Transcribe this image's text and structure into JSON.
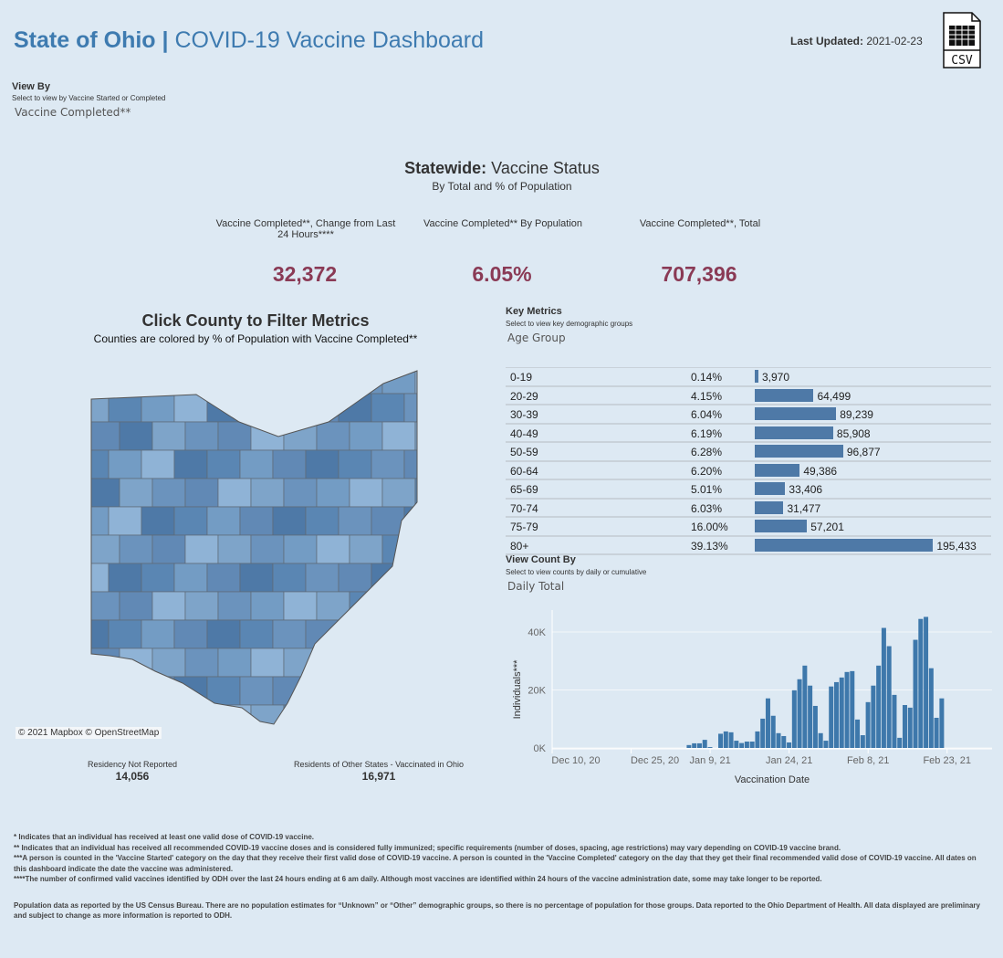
{
  "header": {
    "title_bold": "State of Ohio |",
    "title_rest": "COVID-19 Vaccine Dashboard",
    "last_updated_label": "Last Updated:",
    "last_updated_value": "2021-02-23",
    "csv_icon": "csv-file-icon",
    "csv_label": "CSV"
  },
  "view_by": {
    "title": "View By",
    "subtitle": "Select to view by Vaccine Started or Completed",
    "selected": "Vaccine Completed**"
  },
  "statewide": {
    "title_bold": "Statewide:",
    "title_rest": "Vaccine Status",
    "subtitle": "By Total and % of Population",
    "kpis": [
      {
        "label": "Vaccine Completed**, Change from Last 24 Hours****",
        "value": "32,372"
      },
      {
        "label": "Vaccine Completed** By Population",
        "value": "6.05%"
      },
      {
        "label": "Vaccine Completed**, Total",
        "value": "707,396"
      }
    ]
  },
  "map": {
    "title": "Click County to Filter Metrics",
    "subtitle": "Counties are colored by % of Population with Vaccine Completed**",
    "credit": "© 2021 Mapbox © OpenStreetMap",
    "palette": [
      "#6b93bd",
      "#5a86b3",
      "#7ea4c9",
      "#4e79a7",
      "#8fb3d6",
      "#6189b5",
      "#739cc4"
    ],
    "residency_not_reported_label": "Residency Not Reported",
    "residency_not_reported_value": "14,056",
    "other_states_label": "Residents of Other States - Vaccinated in Ohio",
    "other_states_value": "16,971"
  },
  "key_metrics": {
    "title": "Key Metrics",
    "subtitle": "Select to view key demographic groups",
    "selected": "Age Group",
    "bar_color": "#4e79a7",
    "rows": [
      {
        "group": "0-19",
        "pct": "0.14%",
        "count": 3970,
        "count_label": "3,970"
      },
      {
        "group": "20-29",
        "pct": "4.15%",
        "count": 64499,
        "count_label": "64,499"
      },
      {
        "group": "30-39",
        "pct": "6.04%",
        "count": 89239,
        "count_label": "89,239"
      },
      {
        "group": "40-49",
        "pct": "6.19%",
        "count": 85908,
        "count_label": "85,908"
      },
      {
        "group": "50-59",
        "pct": "6.28%",
        "count": 96877,
        "count_label": "96,877"
      },
      {
        "group": "60-64",
        "pct": "6.20%",
        "count": 49386,
        "count_label": "49,386"
      },
      {
        "group": "65-69",
        "pct": "5.01%",
        "count": 33406,
        "count_label": "33,406"
      },
      {
        "group": "70-74",
        "pct": "6.03%",
        "count": 31477,
        "count_label": "31,477"
      },
      {
        "group": "75-79",
        "pct": "16.00%",
        "count": 57201,
        "count_label": "57,201"
      },
      {
        "group": "80+",
        "pct": "39.13%",
        "count": 195433,
        "count_label": "195,433"
      }
    ]
  },
  "view_count": {
    "title": "View Count By",
    "subtitle": "Select to view counts by daily or cumulative",
    "selected": "Daily Total"
  },
  "chart_data": {
    "type": "bar",
    "xlabel": "Vaccination Date",
    "ylabel": "Individuals***",
    "bar_color": "#3e78ab",
    "x_range": [
      "2020-12-10",
      "2021-02-27"
    ],
    "ylim": [
      0,
      48000
    ],
    "y_ticks": [
      {
        "v": 0,
        "label": "0K"
      },
      {
        "v": 20000,
        "label": "20K"
      },
      {
        "v": 40000,
        "label": "40K"
      }
    ],
    "x_ticks": [
      {
        "d": "2020-12-10",
        "label": "Dec 10, 20"
      },
      {
        "d": "2020-12-25",
        "label": "Dec 25, 20"
      },
      {
        "d": "2021-01-09",
        "label": "Jan 9, 21"
      },
      {
        "d": "2021-01-24",
        "label": "Jan 24, 21"
      },
      {
        "d": "2021-02-08",
        "label": "Feb 8, 21"
      },
      {
        "d": "2021-02-23",
        "label": "Feb 23, 21"
      }
    ],
    "start_date": "2021-01-05",
    "values": [
      1000,
      1600,
      1600,
      2800,
      300,
      0,
      4900,
      5700,
      5400,
      2500,
      1700,
      2200,
      2200,
      5700,
      10100,
      17100,
      11100,
      5100,
      4100,
      1900,
      19900,
      23700,
      28400,
      21500,
      14500,
      5100,
      2500,
      21200,
      22700,
      24300,
      26200,
      26500,
      9800,
      4400,
      15800,
      21500,
      28400,
      41400,
      35100,
      18300,
      3500,
      14800,
      13900,
      37300,
      44500,
      45200,
      27500,
      10400,
      17100
    ]
  },
  "footnotes": [
    "* Indicates that an individual has received at least one valid dose of COVID-19 vaccine.",
    "** Indicates that an individual has received all recommended COVID-19 vaccine doses and is considered fully immunized; specific requirements (number of doses, spacing, age restrictions) may vary depending on COVID-19 vaccine brand.",
    "***A person is counted in the 'Vaccine Started' category on the day that they receive their first valid dose of COVID-19 vaccine.  A person is counted in the 'Vaccine Completed' category on the day that they get their final recommended valid dose of COVID-19 vaccine. All dates on this dashboard indicate the date the vaccine was administered.",
    "****The number of confirmed valid vaccines identified by ODH over the last 24 hours ending at 6 am daily. Although most vaccines are identified within 24 hours of the vaccine administration date, some may take longer to be reported.",
    "Population data as reported by the US Census Bureau. There are no population estimates for “Unknown” or “Other” demographic groups, so there is no percentage of population for those groups.  Data reported to the Ohio Department of Health.  All data displayed are preliminary and subject to change as more information is reported to ODH."
  ]
}
